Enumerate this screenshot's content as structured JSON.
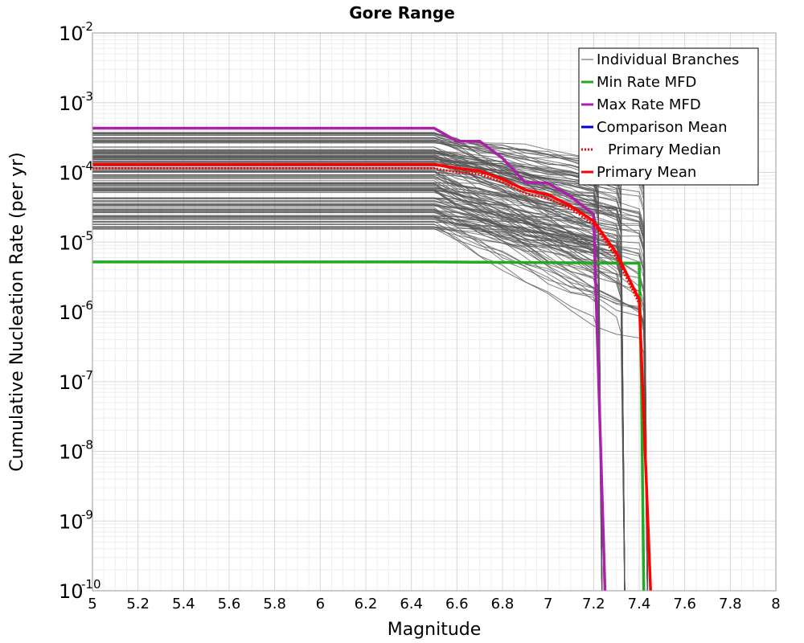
{
  "chart_data": {
    "type": "line",
    "title": "Gore Range",
    "xlabel": "Magnitude",
    "ylabel": "Cumulative Nucleation Rate (per yr)",
    "xlim": [
      5,
      8
    ],
    "ylim": [
      1e-10,
      0.01
    ],
    "yscale": "log",
    "grid": true,
    "legend_position": "top-right",
    "x_ticks": [
      "5",
      "5.2",
      "5.4",
      "5.6",
      "5.8",
      "6",
      "6.2",
      "6.4",
      "6.6",
      "6.8",
      "7",
      "7.2",
      "7.4",
      "7.6",
      "7.8",
      "8"
    ],
    "y_ticks": [
      {
        "base": "10",
        "exp": "-10",
        "value": 1e-10
      },
      {
        "base": "10",
        "exp": "-9",
        "value": 1e-09
      },
      {
        "base": "10",
        "exp": "-8",
        "value": 1e-08
      },
      {
        "base": "10",
        "exp": "-7",
        "value": 1e-07
      },
      {
        "base": "10",
        "exp": "-6",
        "value": 1e-06
      },
      {
        "base": "10",
        "exp": "-5",
        "value": 1e-05
      },
      {
        "base": "10",
        "exp": "-4",
        "value": 0.0001
      },
      {
        "base": "10",
        "exp": "-3",
        "value": 0.001
      },
      {
        "base": "10",
        "exp": "-2",
        "value": 0.01
      }
    ],
    "series": [
      {
        "name": "Min Rate MFD",
        "color": "#22aa22",
        "style": "solid",
        "x": [
          5.0,
          6.5,
          7.4,
          7.41,
          7.42
        ],
        "y": [
          5.2e-06,
          5.2e-06,
          5e-06,
          1e-07,
          1e-10
        ]
      },
      {
        "name": "Max Rate MFD",
        "color": "#aa22aa",
        "style": "solid",
        "x": [
          5.0,
          6.5,
          6.6,
          6.7,
          6.8,
          6.9,
          7.0,
          7.1,
          7.2,
          7.25
        ],
        "y": [
          0.00043,
          0.00043,
          0.00028,
          0.00028,
          0.00016,
          7.2e-05,
          7e-05,
          4.5e-05,
          2.5e-05,
          1e-10
        ]
      },
      {
        "name": "Comparison Mean",
        "color": "#0000cc",
        "style": "solid",
        "x": [],
        "y": []
      },
      {
        "name": "Primary Median",
        "color": "#ff0000",
        "style": "dotted",
        "x": [
          5.0,
          6.5,
          6.6,
          6.7,
          6.8,
          6.9,
          7.0,
          7.1,
          7.2,
          7.3,
          7.4,
          7.45
        ],
        "y": [
          0.000115,
          0.000115,
          0.0001,
          9.5e-05,
          7.2e-05,
          5e-05,
          4.2e-05,
          3e-05,
          1.8e-05,
          6e-06,
          1.3e-06,
          1e-10
        ]
      },
      {
        "name": "Primary Mean",
        "color": "#ff0000",
        "style": "solid",
        "x": [
          5.0,
          6.5,
          6.6,
          6.7,
          6.8,
          6.9,
          7.0,
          7.1,
          7.2,
          7.3,
          7.4,
          7.45
        ],
        "y": [
          0.00013,
          0.00013,
          0.000115,
          0.000105,
          8e-05,
          5.6e-05,
          4.8e-05,
          3.3e-05,
          2e-05,
          7e-06,
          1.5e-06,
          1e-10
        ]
      }
    ],
    "individual_branches": {
      "name": "Individual Branches",
      "color": "#555555",
      "count": 150,
      "flat_level_range": [
        1.5e-05,
        0.00038
      ],
      "flat_until_magnitude": 6.5,
      "max_magnitude_choices": [
        7.22,
        7.32,
        7.42
      ]
    }
  }
}
